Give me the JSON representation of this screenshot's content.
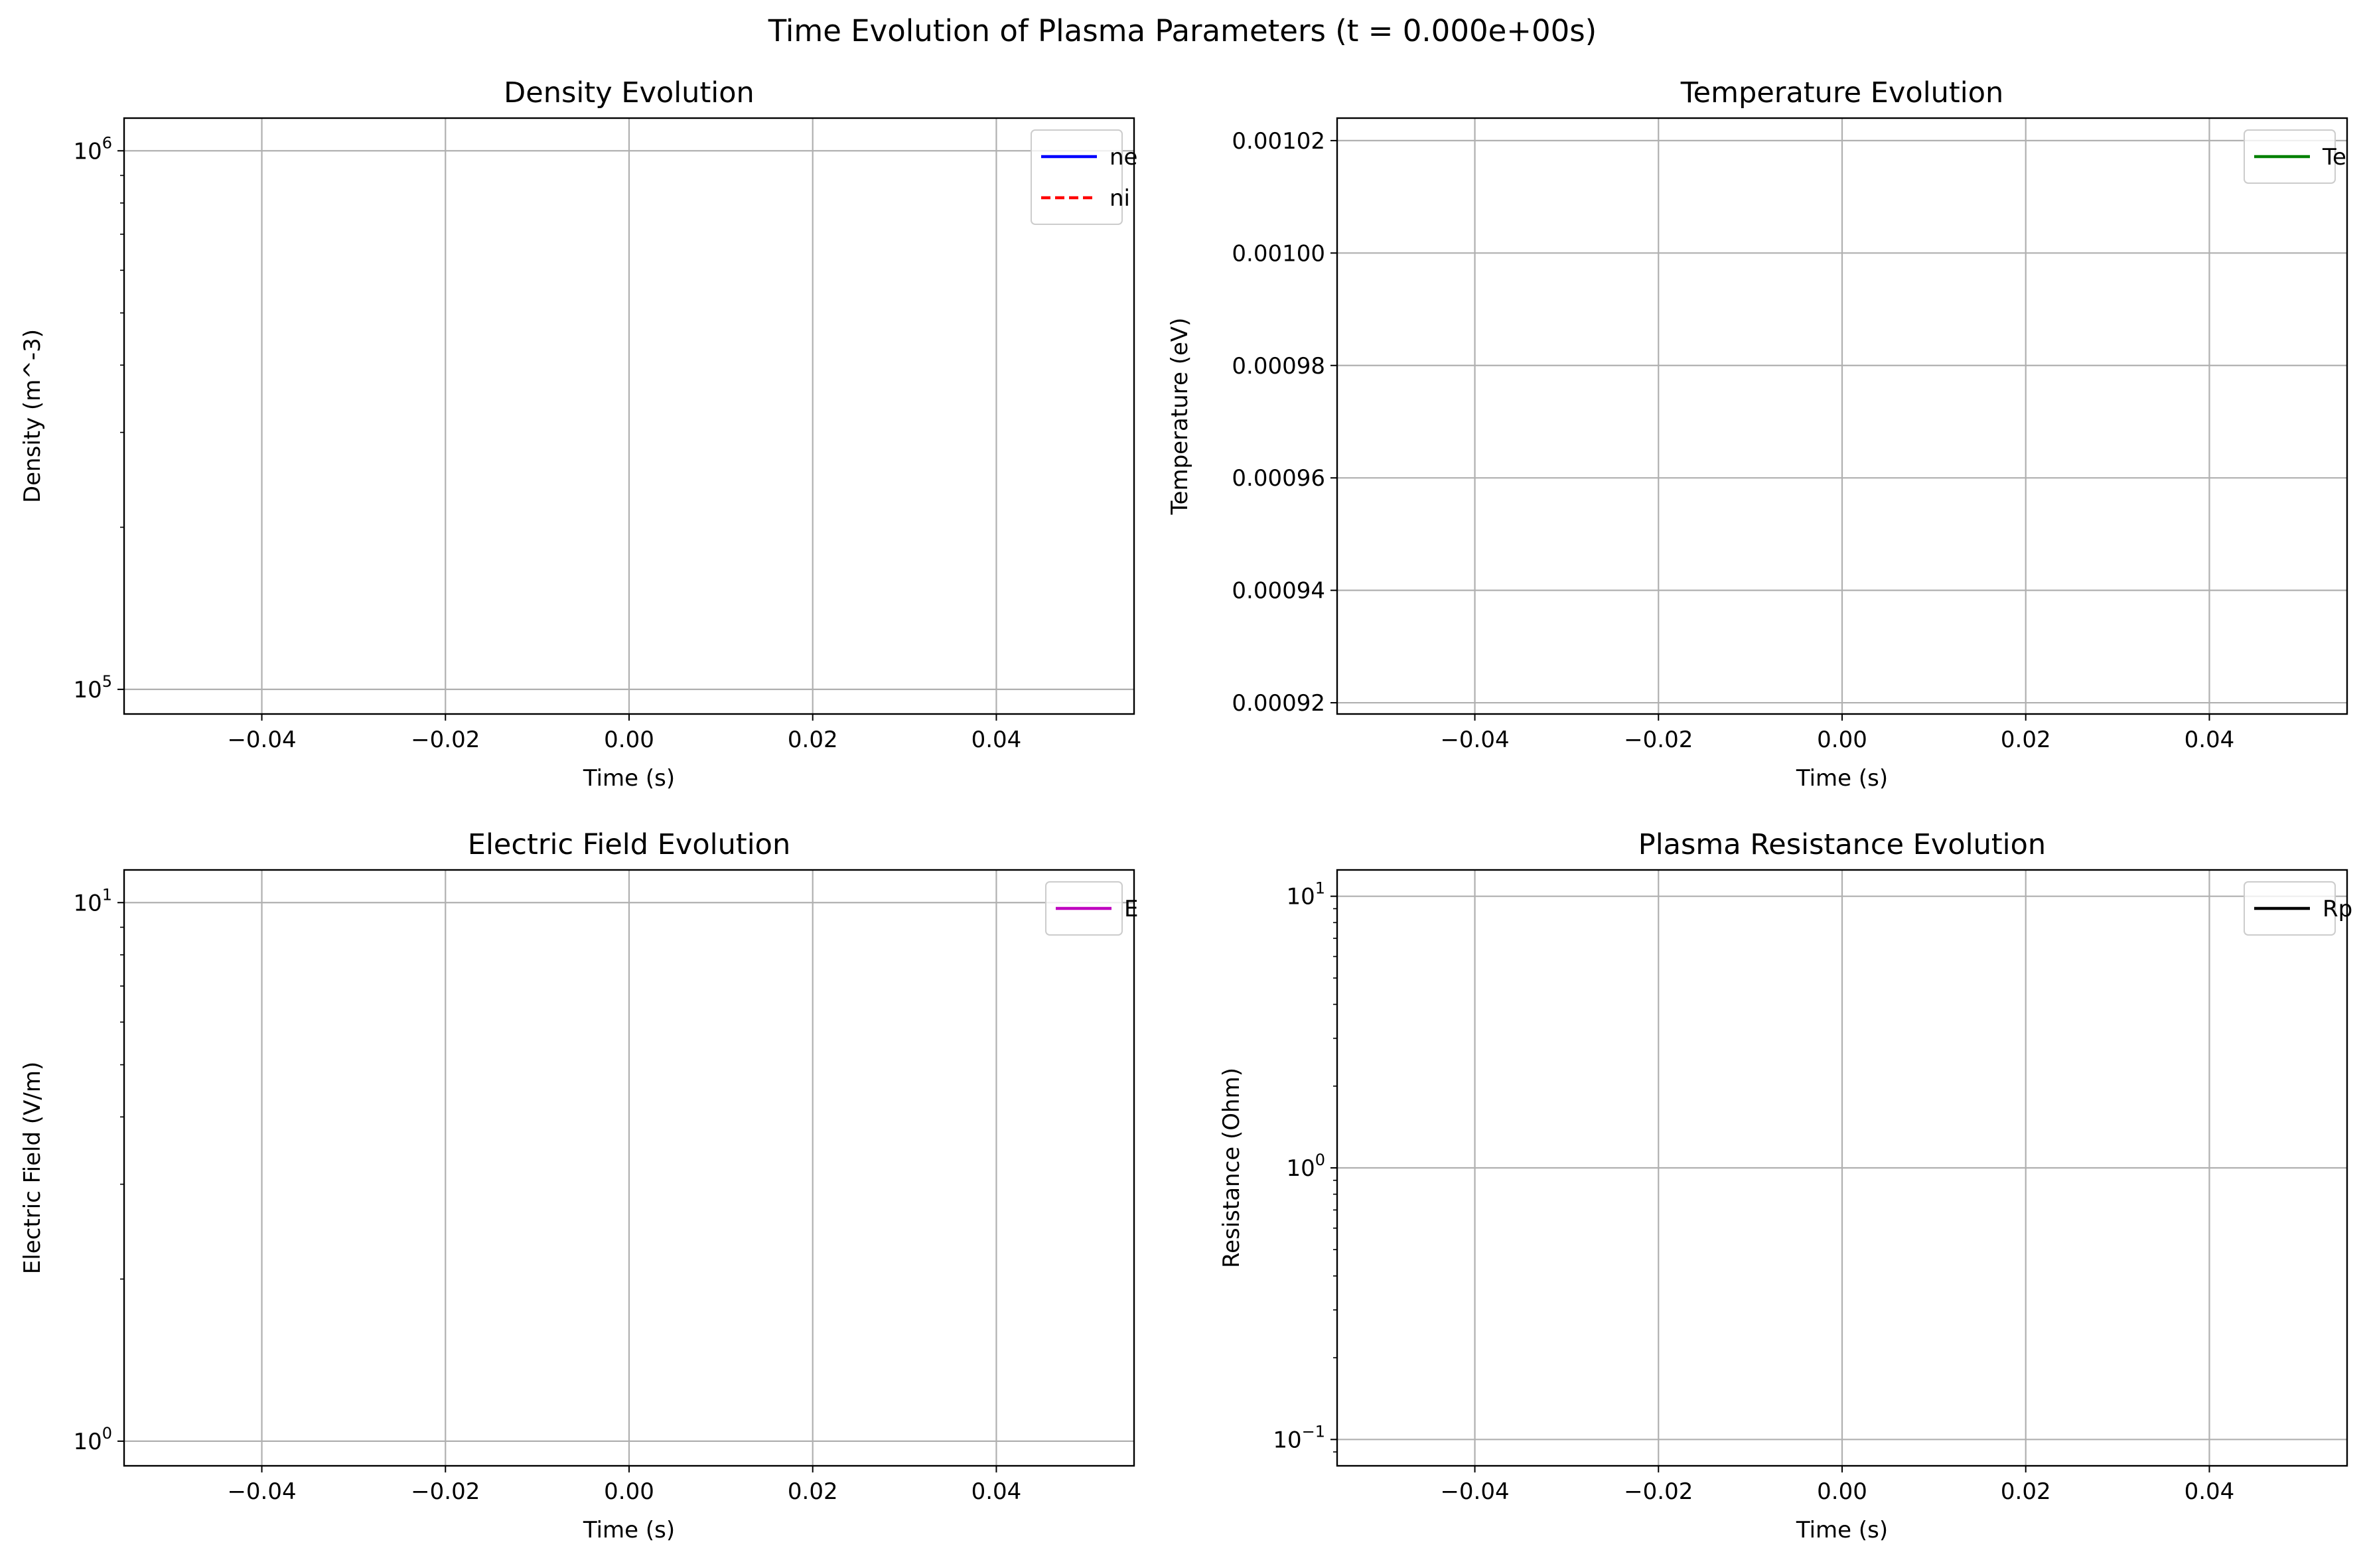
{
  "figure": {
    "suptitle": "Time Evolution of Plasma Parameters (t = 0.000e+00s)"
  },
  "colors": {
    "ne": "#0000ff",
    "ni": "#ff0000",
    "Te": "#008000",
    "E": "#bf00bf",
    "Rp": "#000000",
    "grid": "#b0b0b0",
    "axes": "#000000",
    "legend_border": "#cccccc"
  },
  "chart_data": [
    {
      "type": "line",
      "title": "Density Evolution",
      "xlabel": "Time (s)",
      "ylabel": "Density (m^-3)",
      "xlim": [
        -0.055,
        0.055
      ],
      "ylim": [
        90000,
        1150000
      ],
      "yscale": "log",
      "xticks": [
        -0.04,
        -0.02,
        0.0,
        0.02,
        0.04
      ],
      "xticklabels": [
        "−0.04",
        "−0.02",
        "0.00",
        "0.02",
        "0.04"
      ],
      "yticks": [
        {
          "value": 100000,
          "base": "10",
          "exp": "5"
        },
        {
          "value": 1000000,
          "base": "10",
          "exp": "6"
        }
      ],
      "grid": true,
      "legend_position": "upper right",
      "series": [
        {
          "name": "ne",
          "color_key": "ne",
          "dash": "solid",
          "x": [],
          "y": []
        },
        {
          "name": "ni",
          "color_key": "ni",
          "dash": "dashed",
          "x": [],
          "y": []
        }
      ]
    },
    {
      "type": "line",
      "title": "Temperature Evolution",
      "xlabel": "Time (s)",
      "ylabel": "Temperature (eV)",
      "xlim": [
        -0.055,
        0.055
      ],
      "ylim": [
        0.000918,
        0.001024
      ],
      "yscale": "linear",
      "xticks": [
        -0.04,
        -0.02,
        0.0,
        0.02,
        0.04
      ],
      "xticklabels": [
        "−0.04",
        "−0.02",
        "0.00",
        "0.02",
        "0.04"
      ],
      "yticks": [
        {
          "value": 0.00092,
          "label": "0.00092"
        },
        {
          "value": 0.00094,
          "label": "0.00094"
        },
        {
          "value": 0.00096,
          "label": "0.00096"
        },
        {
          "value": 0.00098,
          "label": "0.00098"
        },
        {
          "value": 0.001,
          "label": "0.00100"
        },
        {
          "value": 0.00102,
          "label": "0.00102"
        }
      ],
      "grid": true,
      "legend_position": "upper right",
      "series": [
        {
          "name": "Te",
          "color_key": "Te",
          "dash": "solid",
          "x": [],
          "y": []
        }
      ]
    },
    {
      "type": "line",
      "title": "Electric Field Evolution",
      "xlabel": "Time (s)",
      "ylabel": "Electric Field (V/m)",
      "xlim": [
        -0.055,
        0.055
      ],
      "ylim": [
        0.9,
        11.5
      ],
      "yscale": "log",
      "xticks": [
        -0.04,
        -0.02,
        0.0,
        0.02,
        0.04
      ],
      "xticklabels": [
        "−0.04",
        "−0.02",
        "0.00",
        "0.02",
        "0.04"
      ],
      "yticks": [
        {
          "value": 1,
          "base": "10",
          "exp": "0"
        },
        {
          "value": 10,
          "base": "10",
          "exp": "1"
        }
      ],
      "grid": true,
      "legend_position": "upper right",
      "series": [
        {
          "name": "E",
          "color_key": "E",
          "dash": "solid",
          "x": [],
          "y": []
        }
      ]
    },
    {
      "type": "line",
      "title": "Plasma Resistance Evolution",
      "xlabel": "Time (s)",
      "ylabel": "Resistance (Ohm)",
      "xlim": [
        -0.055,
        0.055
      ],
      "ylim": [
        0.08,
        12.5
      ],
      "yscale": "log",
      "xticks": [
        -0.04,
        -0.02,
        0.0,
        0.02,
        0.04
      ],
      "xticklabels": [
        "−0.04",
        "−0.02",
        "0.00",
        "0.02",
        "0.04"
      ],
      "yticks": [
        {
          "value": 0.1,
          "base": "10",
          "exp": "−1"
        },
        {
          "value": 1,
          "base": "10",
          "exp": "0"
        },
        {
          "value": 10,
          "base": "10",
          "exp": "1"
        }
      ],
      "grid": true,
      "legend_position": "upper right",
      "series": [
        {
          "name": "Rp",
          "color_key": "Rp",
          "dash": "solid",
          "x": [],
          "y": []
        }
      ]
    }
  ]
}
